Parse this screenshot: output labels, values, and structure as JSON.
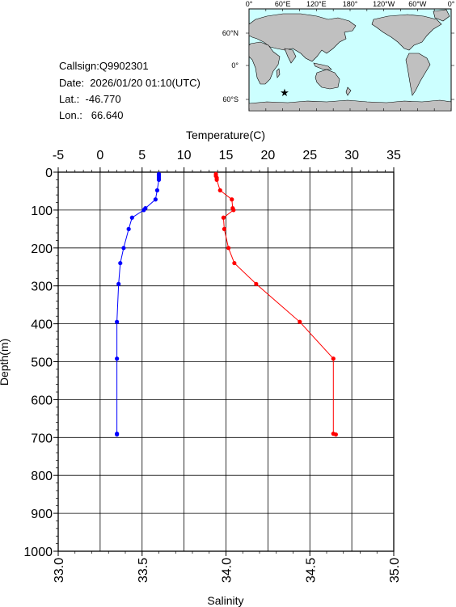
{
  "station": {
    "callsign_line": "Callsign:Q9902301",
    "date_line": "Date:  2026/01/20 01:10(UTC)",
    "lat_line": "Lat.:  -46.770",
    "lon_line": "Lon.:   66.640"
  },
  "map": {
    "lon_labels": [
      "0°",
      "60°E",
      "120°E",
      "180°",
      "120°W",
      "60°W",
      "0°"
    ],
    "lat_labels": [
      "60°N",
      "0°",
      "60°S"
    ],
    "marker": "red-star",
    "ocean_color": "#ccffff",
    "land_color": "#c0c0c0"
  },
  "chart_data": {
    "type": "line",
    "top_axis_label": "Temperature(C)",
    "bottom_axis_label": "Salinity",
    "left_axis_label": "Depth(m)",
    "temperature_ticks": [
      "-5",
      "0",
      "5",
      "10",
      "15",
      "20",
      "25",
      "30",
      "35"
    ],
    "salinity_ticks": [
      "33.0",
      "33.5",
      "34.0",
      "34.5",
      "35.0"
    ],
    "depth_ticks": [
      "0",
      "100",
      "200",
      "300",
      "400",
      "500",
      "600",
      "700",
      "800",
      "900",
      "1000"
    ],
    "temperature_range": [
      -5,
      35
    ],
    "salinity_range": [
      33.0,
      35.0
    ],
    "depth_range": [
      0,
      1000
    ],
    "grid": true,
    "series": [
      {
        "name": "Temperature",
        "color": "#ff0000",
        "axis": "top",
        "points": [
          {
            "depth": 5,
            "value": 13.8
          },
          {
            "depth": 10,
            "value": 13.8
          },
          {
            "depth": 15,
            "value": 13.9
          },
          {
            "depth": 20,
            "value": 13.9
          },
          {
            "depth": 48,
            "value": 14.3
          },
          {
            "depth": 72,
            "value": 15.7
          },
          {
            "depth": 95,
            "value": 15.8
          },
          {
            "depth": 100,
            "value": 15.9
          },
          {
            "depth": 120,
            "value": 14.7
          },
          {
            "depth": 150,
            "value": 14.8
          },
          {
            "depth": 200,
            "value": 15.3
          },
          {
            "depth": 240,
            "value": 16.0
          },
          {
            "depth": 295,
            "value": 18.6
          },
          {
            "depth": 395,
            "value": 23.8
          },
          {
            "depth": 492,
            "value": 27.8
          },
          {
            "depth": 690,
            "value": 27.8
          },
          {
            "depth": 692,
            "value": 28.1
          }
        ]
      },
      {
        "name": "Salinity",
        "color": "#0000ff",
        "axis": "bottom",
        "points": [
          {
            "depth": 5,
            "value": 33.6
          },
          {
            "depth": 10,
            "value": 33.6
          },
          {
            "depth": 15,
            "value": 33.6
          },
          {
            "depth": 20,
            "value": 33.6
          },
          {
            "depth": 48,
            "value": 33.59
          },
          {
            "depth": 72,
            "value": 33.58
          },
          {
            "depth": 95,
            "value": 33.52
          },
          {
            "depth": 100,
            "value": 33.51
          },
          {
            "depth": 120,
            "value": 33.44
          },
          {
            "depth": 150,
            "value": 33.42
          },
          {
            "depth": 200,
            "value": 33.39
          },
          {
            "depth": 240,
            "value": 33.37
          },
          {
            "depth": 295,
            "value": 33.36
          },
          {
            "depth": 395,
            "value": 33.35
          },
          {
            "depth": 492,
            "value": 33.35
          },
          {
            "depth": 690,
            "value": 33.35
          },
          {
            "depth": 692,
            "value": 33.35
          }
        ]
      }
    ]
  }
}
